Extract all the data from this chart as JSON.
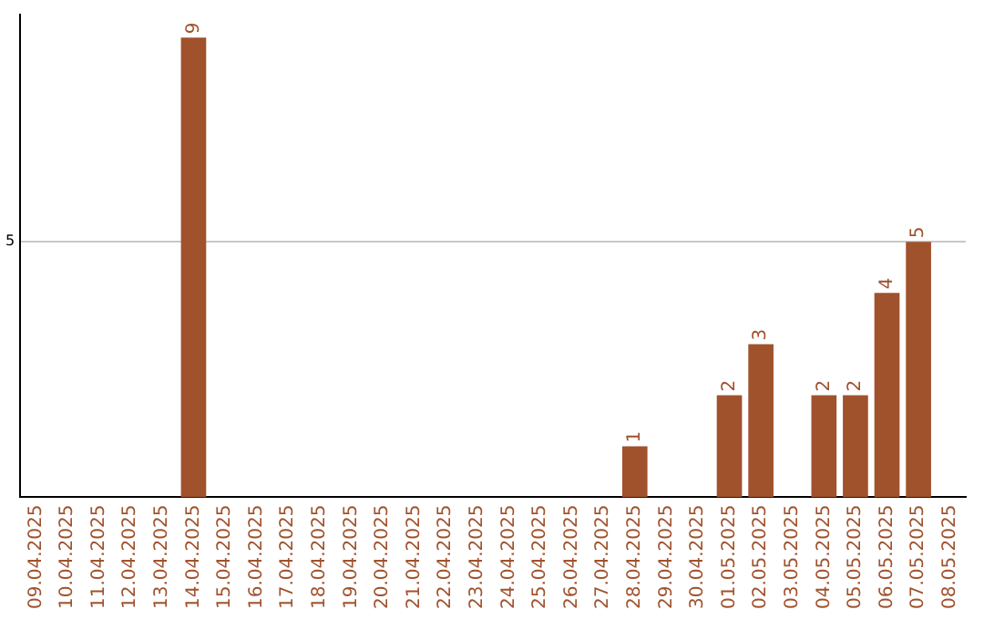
{
  "chart_data": {
    "type": "bar",
    "categories": [
      "09.04.2025",
      "10.04.2025",
      "11.04.2025",
      "12.04.2025",
      "13.04.2025",
      "14.04.2025",
      "15.04.2025",
      "16.04.2025",
      "17.04.2025",
      "18.04.2025",
      "19.04.2025",
      "20.04.2025",
      "21.04.2025",
      "22.04.2025",
      "23.04.2025",
      "24.04.2025",
      "25.04.2025",
      "26.04.2025",
      "27.04.2025",
      "28.04.2025",
      "29.04.2025",
      "30.04.2025",
      "01.05.2025",
      "02.05.2025",
      "03.05.2025",
      "04.05.2025",
      "05.05.2025",
      "06.05.2025",
      "07.05.2025",
      "08.05.2025"
    ],
    "values": [
      0,
      0,
      0,
      0,
      0,
      9,
      0,
      0,
      0,
      0,
      0,
      0,
      0,
      0,
      0,
      0,
      0,
      0,
      0,
      1,
      0,
      0,
      2,
      3,
      0,
      2,
      2,
      4,
      5,
      0
    ],
    "value_labels": [
      null,
      null,
      null,
      null,
      null,
      "9",
      null,
      null,
      null,
      null,
      null,
      null,
      null,
      null,
      null,
      null,
      null,
      null,
      null,
      "1",
      null,
      null,
      "2",
      "3",
      null,
      "2",
      "2",
      "4",
      "5",
      null
    ],
    "color": "#a0522d",
    "ylim": [
      0,
      9.45
    ],
    "yticks": [
      5
    ],
    "grid": "y",
    "legend": false
  }
}
